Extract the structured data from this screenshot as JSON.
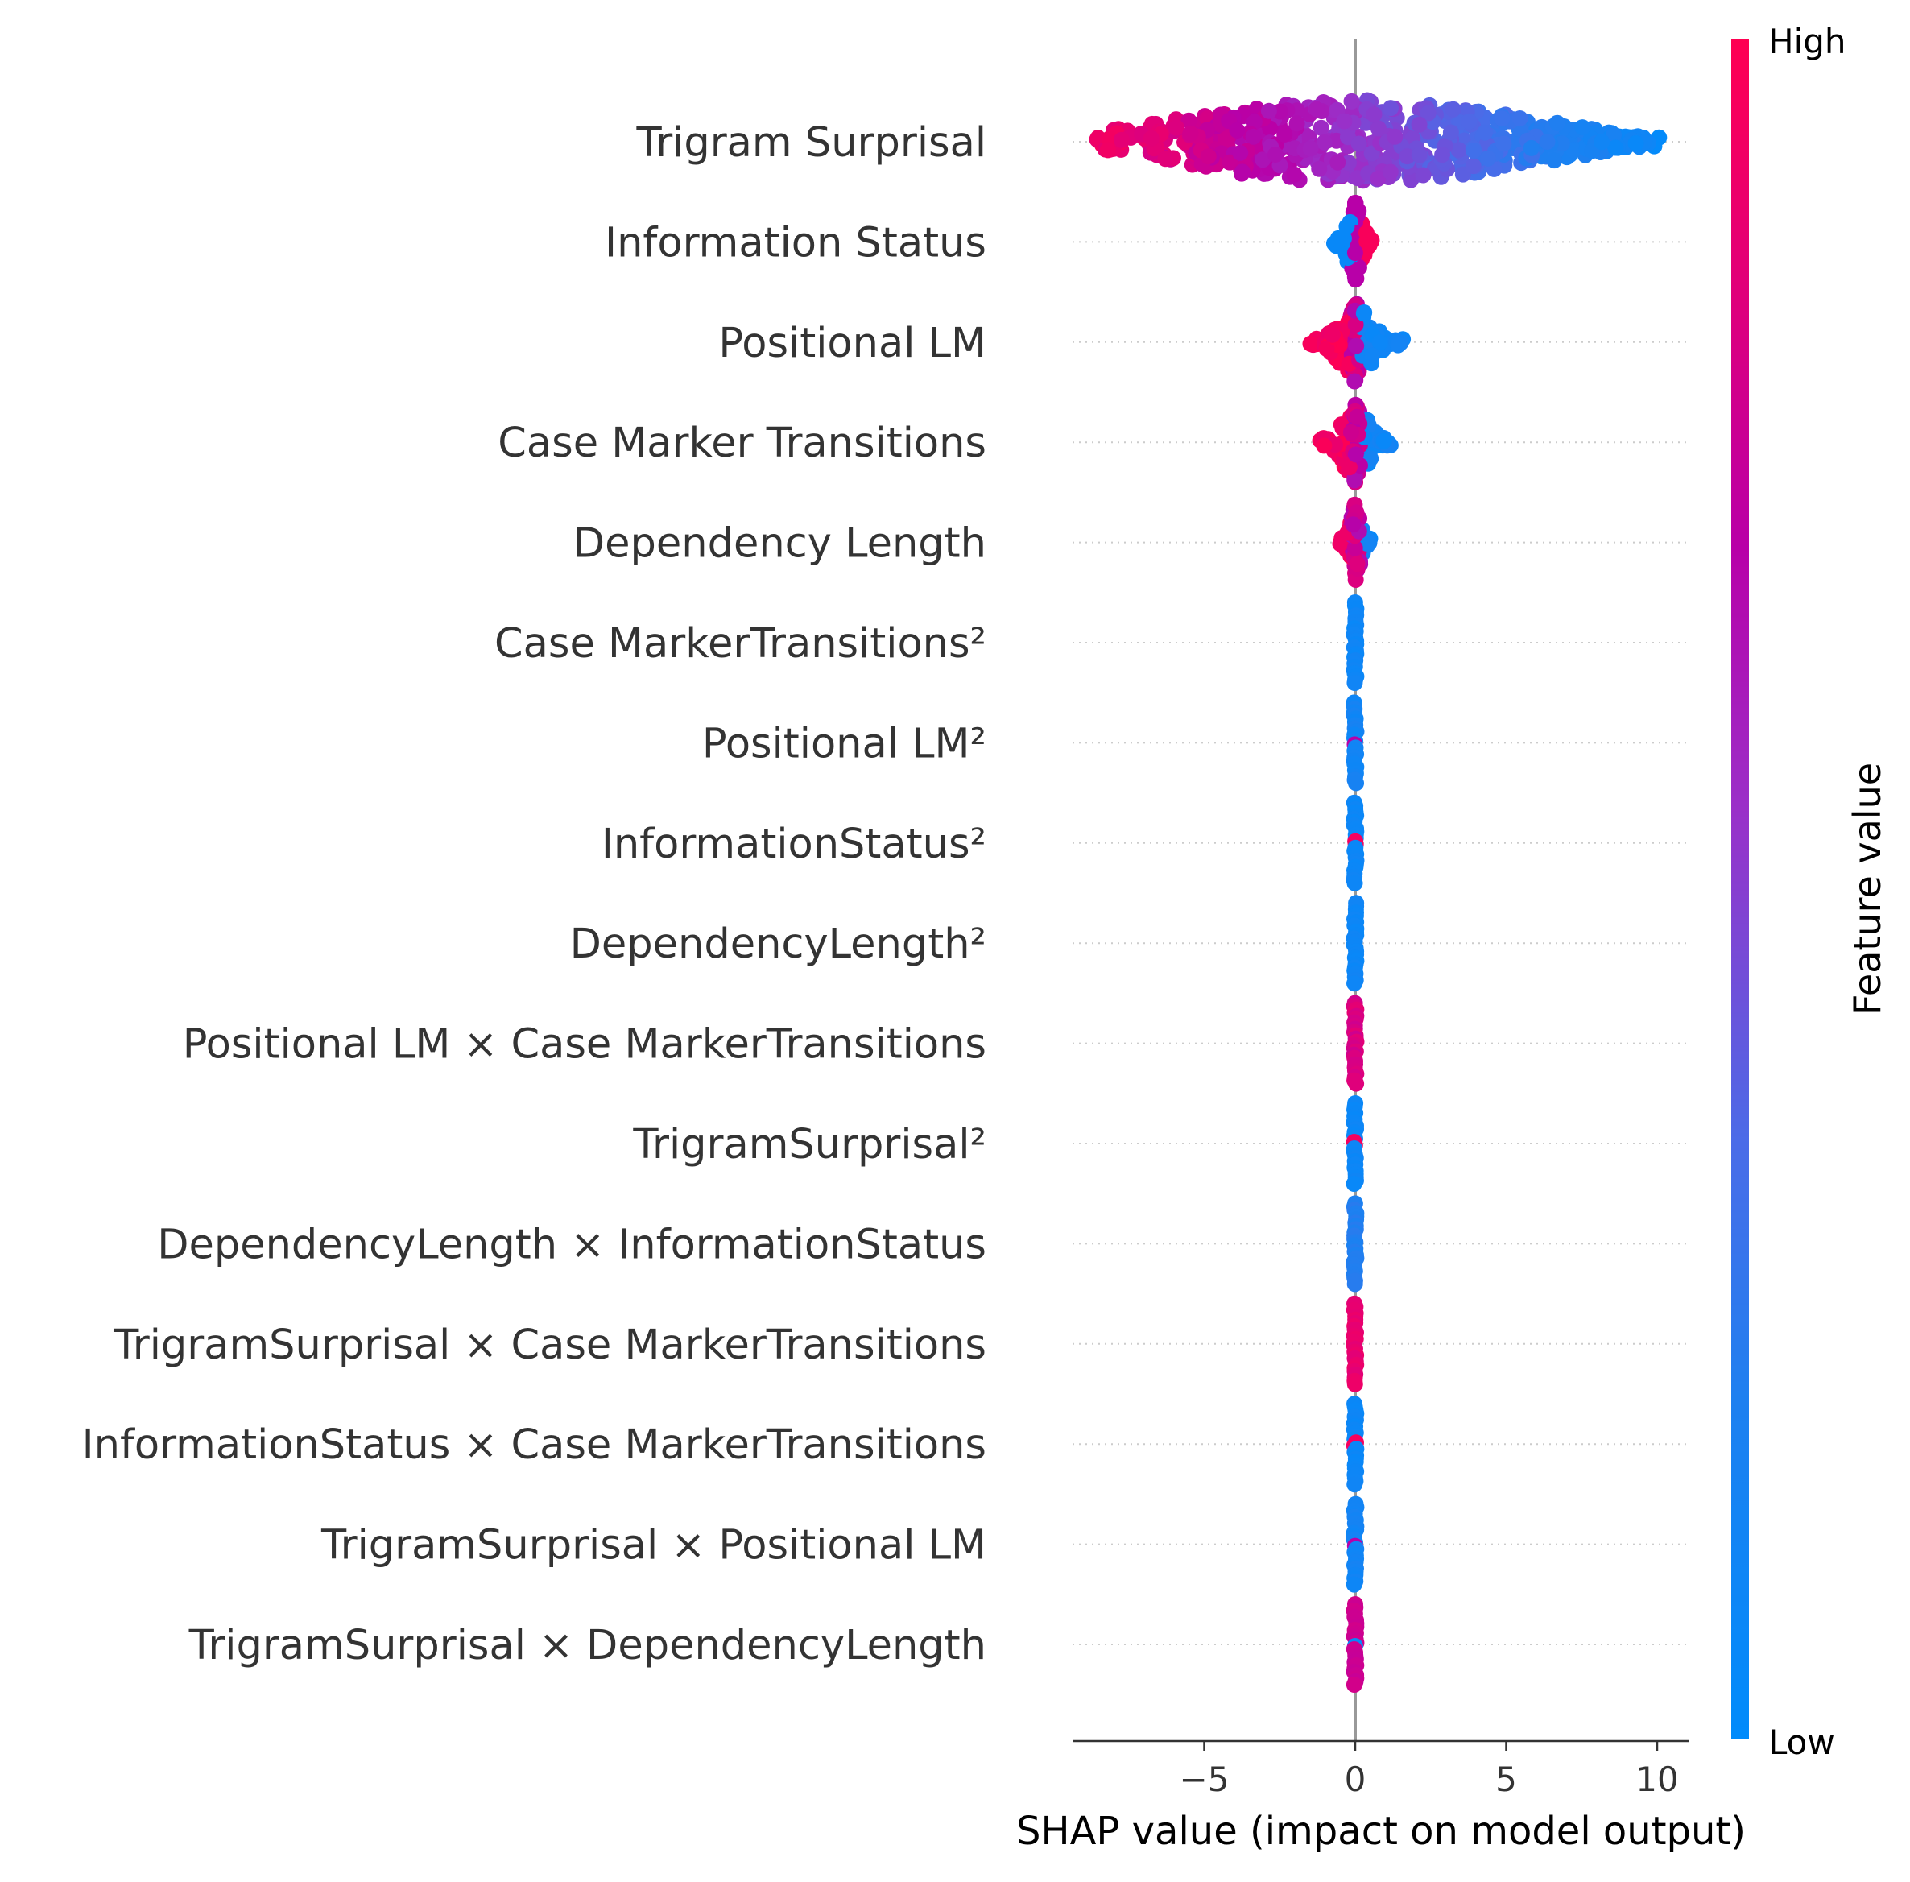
{
  "chart_data": {
    "type": "scatter",
    "subtype": "shap-beeswarm",
    "xlabel": "SHAP value (impact on model output)",
    "xlim": [
      -9.2,
      11.2
    ],
    "xticks": [
      {
        "value": -5,
        "label": "−5"
      },
      {
        "value": 0,
        "label": "0"
      },
      {
        "value": 5,
        "label": "5"
      },
      {
        "value": 10,
        "label": "10"
      }
    ],
    "colorbar": {
      "title": "Feature value",
      "high_label": "High",
      "low_label": "Low",
      "high_color": "#ff0052",
      "mid_color": "#b000a0",
      "low_color": "#008bfb"
    },
    "zero_line": true,
    "features": [
      {
        "name": "Trigram Surprisal",
        "min": -8.6,
        "max": 10.1,
        "spread": 0.55,
        "coloring": "gradient_neg_high",
        "density": 95
      },
      {
        "name": "Information Status",
        "min": -0.7,
        "max": 0.6,
        "spread": 0.3,
        "coloring": "split_neg_low",
        "density": 18
      },
      {
        "name": "Positional LM",
        "min": -1.5,
        "max": 1.6,
        "spread": 0.4,
        "coloring": "split_neg_high",
        "density": 22
      },
      {
        "name": "Case Marker Transitions",
        "min": -1.3,
        "max": 1.2,
        "spread": 0.3,
        "coloring": "split_neg_high",
        "density": 18
      },
      {
        "name": "Dependency Length",
        "min": -0.5,
        "max": 0.5,
        "spread": 0.35,
        "coloring": "split_neg_high",
        "density": 14
      },
      {
        "name": "Case MarkerTransitions²",
        "min": -0.02,
        "max": 0.02,
        "spread": 0.4,
        "coloring": "low",
        "density": 10
      },
      {
        "name": "Positional LM²",
        "min": -0.02,
        "max": 0.02,
        "spread": 0.4,
        "coloring": "low_with_mid",
        "density": 10
      },
      {
        "name": "InformationStatus²",
        "min": -0.02,
        "max": 0.02,
        "spread": 0.4,
        "coloring": "low_with_high",
        "density": 10
      },
      {
        "name": "DependencyLength²",
        "min": -0.02,
        "max": 0.02,
        "spread": 0.4,
        "coloring": "low",
        "density": 10
      },
      {
        "name": "Positional LM × Case MarkerTransitions",
        "min": -0.02,
        "max": 0.02,
        "spread": 0.4,
        "coloring": "mid_high",
        "density": 10
      },
      {
        "name": "TrigramSurprisal²",
        "min": -0.02,
        "max": 0.02,
        "spread": 0.4,
        "coloring": "low_with_high",
        "density": 10
      },
      {
        "name": "DependencyLength × InformationStatus",
        "min": -0.02,
        "max": 0.02,
        "spread": 0.4,
        "coloring": "low_dark",
        "density": 10
      },
      {
        "name": "TrigramSurprisal × Case MarkerTransitions",
        "min": -0.02,
        "max": 0.02,
        "spread": 0.4,
        "coloring": "high_pink",
        "density": 10
      },
      {
        "name": "InformationStatus × Case MarkerTransitions",
        "min": -0.02,
        "max": 0.02,
        "spread": 0.4,
        "coloring": "low_with_high",
        "density": 10
      },
      {
        "name": "TrigramSurprisal × Positional LM",
        "min": -0.02,
        "max": 0.02,
        "spread": 0.4,
        "coloring": "low_with_mid",
        "density": 10
      },
      {
        "name": "TrigramSurprisal × DependencyLength",
        "min": -0.02,
        "max": 0.02,
        "spread": 0.4,
        "coloring": "mid_with_low",
        "density": 10
      }
    ]
  }
}
